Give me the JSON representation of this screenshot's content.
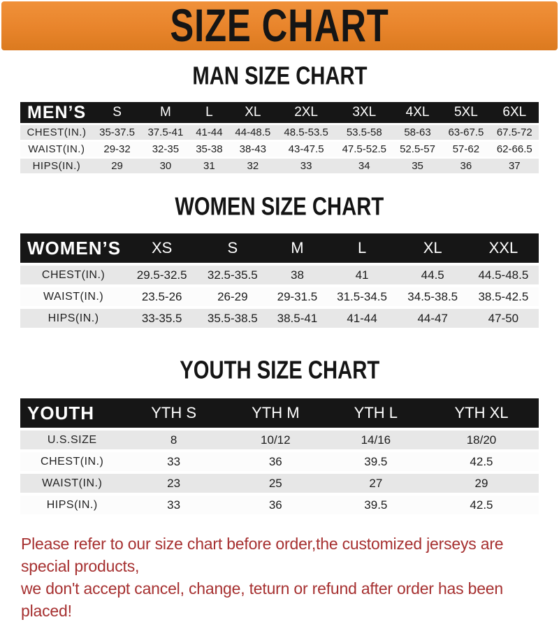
{
  "banner": {
    "title": "SIZE CHART",
    "bg_color": "#E8842B",
    "text_color": "#151515"
  },
  "sections": [
    {
      "heading": "MAN SIZE CHART",
      "table": {
        "header_label": "MEN’S",
        "columns": [
          "S",
          "M",
          "L",
          "XL",
          "2XL",
          "3XL",
          "4XL",
          "5XL",
          "6XL"
        ],
        "rows": [
          {
            "label": "CHEST(IN.)",
            "values": [
              "35-37.5",
              "37.5-41",
              "41-44",
              "44-48.5",
              "48.5-53.5",
              "53.5-58",
              "58-63",
              "63-67.5",
              "67.5-72"
            ]
          },
          {
            "label": "WAIST(IN.)",
            "values": [
              "29-32",
              "32-35",
              "35-38",
              "38-43",
              "43-47.5",
              "47.5-52.5",
              "52.5-57",
              "57-62",
              "62-66.5"
            ]
          },
          {
            "label": "HIPS(IN.)",
            "values": [
              "29",
              "30",
              "31",
              "32",
              "33",
              "34",
              "35",
              "36",
              "37"
            ]
          }
        ]
      }
    },
    {
      "heading": "WOMEN SIZE CHART",
      "table": {
        "header_label": "WOMEN’S",
        "columns": [
          "XS",
          "S",
          "M",
          "L",
          "XL",
          "XXL"
        ],
        "rows": [
          {
            "label": "CHEST(IN.)",
            "values": [
              "29.5-32.5",
              "32.5-35.5",
              "38",
              "41",
              "44.5",
              "44.5-48.5"
            ]
          },
          {
            "label": "WAIST(IN.)",
            "values": [
              "23.5-26",
              "26-29",
              "29-31.5",
              "31.5-34.5",
              "34.5-38.5",
              "38.5-42.5"
            ]
          },
          {
            "label": "HIPS(IN.)",
            "values": [
              "33-35.5",
              "35.5-38.5",
              "38.5-41",
              "41-44",
              "44-47",
              "47-50"
            ]
          }
        ]
      }
    },
    {
      "heading": "YOUTH SIZE CHART",
      "table": {
        "header_label": "YOUTH",
        "columns": [
          "YTH S",
          "YTH M",
          "YTH L",
          "YTH XL"
        ],
        "rows": [
          {
            "label": "U.S.SIZE",
            "values": [
              "8",
              "10/12",
              "14/16",
              "18/20"
            ]
          },
          {
            "label": "CHEST(IN.)",
            "values": [
              "33",
              "36",
              "39.5",
              "42.5"
            ]
          },
          {
            "label": "WAIST(IN.)",
            "values": [
              "23",
              "25",
              "27",
              "29"
            ]
          },
          {
            "label": "HIPS(IN.)",
            "values": [
              "33",
              "36",
              "39.5",
              "42.5"
            ]
          }
        ]
      }
    }
  ],
  "disclaimer": {
    "line1": "Please refer to our size chart before order,the customized jerseys are special products,",
    "line2": "we don't accept cancel, change, teturn or refund after order has been placed!",
    "color": "#A63030"
  },
  "row_colors": {
    "stripe": "#E7E7E7",
    "plain": "#FCFCFC",
    "header_bar": "#161616"
  }
}
